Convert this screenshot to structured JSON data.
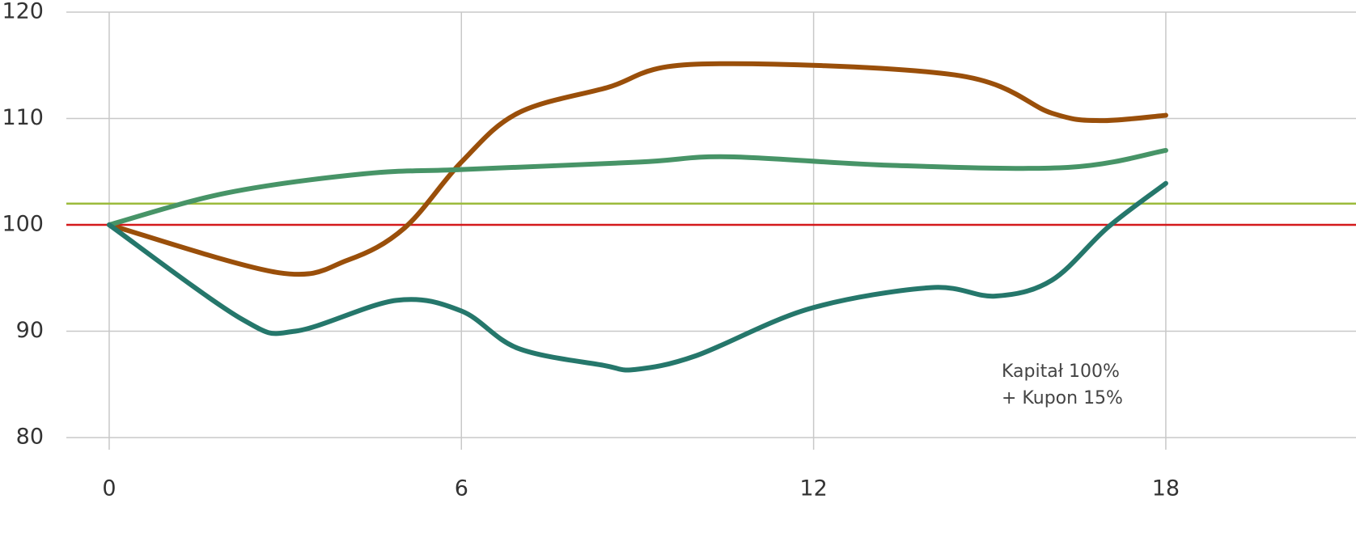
{
  "chart_data": {
    "type": "line",
    "xlim": [
      -0.73,
      21.24
    ],
    "xticks": [
      0,
      6,
      12,
      18
    ],
    "ylim": [
      80,
      120
    ],
    "yticks": [
      80,
      90,
      100,
      110,
      120
    ],
    "grid": true,
    "hlines": [
      {
        "value": 100,
        "color": "#d4191b"
      },
      {
        "value": 102,
        "color": "#9bbb3b"
      }
    ],
    "series": [
      {
        "color": "#9a4f0a",
        "x": [
          0,
          2.89,
          4.07,
          5.03,
          6.0,
          6.96,
          8.48,
          10.0,
          14.4,
          16.06,
          16.88,
          18
        ],
        "values": [
          100,
          95.5,
          96.7,
          99.7,
          105.9,
          110.5,
          112.9,
          115.1,
          114.1,
          110.5,
          109.8,
          110.3
        ]
      },
      {
        "color": "#479467",
        "x": [
          0,
          2.0,
          4.34,
          6.0,
          9.03,
          10.54,
          13.3,
          16.33,
          18
        ],
        "values": [
          100,
          103.0,
          104.8,
          105.2,
          105.9,
          106.4,
          105.6,
          105.4,
          107.0
        ]
      },
      {
        "color": "#25776b",
        "x": [
          0,
          2.27,
          3.17,
          4.89,
          6.0,
          6.96,
          8.41,
          8.96,
          10.0,
          11.92,
          14.0,
          15.09,
          16.06,
          17.02,
          18
        ],
        "values": [
          100,
          91.1,
          90.0,
          92.9,
          91.9,
          88.4,
          86.8,
          86.4,
          87.7,
          92.1,
          94.1,
          93.3,
          94.8,
          99.8,
          103.9
        ]
      }
    ],
    "annotation": [
      "Kapitał 100%",
      "+ Kupon 15%"
    ]
  }
}
